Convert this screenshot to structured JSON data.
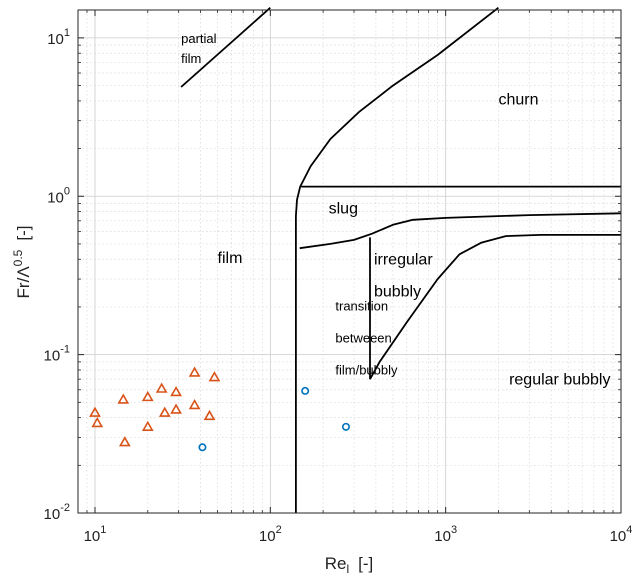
{
  "chart_data": {
    "type": "scatter",
    "xscale": "log",
    "yscale": "log",
    "xlim": [
      8,
      10000
    ],
    "ylim": [
      0.01,
      15
    ],
    "grid": true,
    "minor_grid": true,
    "xlabel": {
      "main": "Re",
      "sub": "l",
      "unit": "[-]"
    },
    "ylabel": {
      "main": "Fr/Λ",
      "sup": "0.5",
      "unit": "[-]"
    },
    "x_ticks": [
      {
        "value": 10,
        "base": "10",
        "exp": "1"
      },
      {
        "value": 100,
        "base": "10",
        "exp": "2"
      },
      {
        "value": 1000,
        "base": "10",
        "exp": "3"
      },
      {
        "value": 10000,
        "base": "10",
        "exp": "4"
      }
    ],
    "y_ticks": [
      {
        "value": 0.01,
        "base": "10",
        "exp": "-2"
      },
      {
        "value": 0.1,
        "base": "10",
        "exp": "-1"
      },
      {
        "value": 1,
        "base": "10",
        "exp": "0"
      },
      {
        "value": 10,
        "base": "10",
        "exp": "1"
      }
    ],
    "boundaries": [
      {
        "name": "partial-film-line",
        "points": [
          [
            31,
            4.9
          ],
          [
            100,
            15.5
          ]
        ]
      },
      {
        "name": "churn-boundary",
        "points": [
          [
            140,
            0.75
          ],
          [
            142,
            0.95
          ],
          [
            148,
            1.15
          ],
          [
            170,
            1.55
          ],
          [
            220,
            2.3
          ],
          [
            320,
            3.4
          ],
          [
            500,
            5.0
          ],
          [
            900,
            7.8
          ],
          [
            2000,
            15.5
          ]
        ]
      },
      {
        "name": "film-left-wall",
        "points": [
          [
            140,
            0.01
          ],
          [
            140,
            0.75
          ]
        ]
      },
      {
        "name": "slug-upper",
        "points": [
          [
            150,
            1.15
          ],
          [
            10000,
            1.15
          ]
        ]
      },
      {
        "name": "slug-lower",
        "points": [
          [
            147,
            0.47
          ],
          [
            220,
            0.5
          ],
          [
            300,
            0.53
          ],
          [
            380,
            0.58
          ],
          [
            500,
            0.66
          ],
          [
            650,
            0.71
          ],
          [
            1000,
            0.73
          ],
          [
            3000,
            0.76
          ],
          [
            10000,
            0.78
          ]
        ]
      },
      {
        "name": "transition-right-wall",
        "points": [
          [
            370,
            0.07
          ],
          [
            370,
            0.55
          ]
        ]
      },
      {
        "name": "regular-bubbly-boundary",
        "points": [
          [
            370,
            0.07
          ],
          [
            420,
            0.09
          ],
          [
            600,
            0.16
          ],
          [
            900,
            0.3
          ],
          [
            1200,
            0.43
          ],
          [
            1600,
            0.51
          ],
          [
            2200,
            0.56
          ],
          [
            3500,
            0.57
          ],
          [
            10000,
            0.57
          ]
        ]
      }
    ],
    "regions": [
      {
        "lines": [
          "partial",
          "film"
        ],
        "x": 31,
        "y": 9.3,
        "size": 13
      },
      {
        "lines": [
          "churn"
        ],
        "x": 2000,
        "y": 3.8,
        "size": 16
      },
      {
        "lines": [
          "slug"
        ],
        "x": 215,
        "y": 0.78,
        "size": 16
      },
      {
        "lines": [
          "film"
        ],
        "x": 50,
        "y": 0.38,
        "size": 16
      },
      {
        "lines": [
          "irregular",
          "bubbly"
        ],
        "x": 390,
        "y": 0.37,
        "size": 16
      },
      {
        "lines": [
          "transition",
          "betweeen",
          "film/bubbly"
        ],
        "x": 235,
        "y": 0.19,
        "size": 13
      },
      {
        "lines": [
          "regular bubbly"
        ],
        "x": 2300,
        "y": 0.065,
        "size": 16
      }
    ],
    "series": [
      {
        "marker": "triangle",
        "color": "#D95319",
        "points": [
          [
            10,
            0.043
          ],
          [
            10.3,
            0.037
          ],
          [
            14.5,
            0.052
          ],
          [
            14.8,
            0.028
          ],
          [
            20,
            0.054
          ],
          [
            20,
            0.035
          ],
          [
            24,
            0.061
          ],
          [
            25,
            0.043
          ],
          [
            29,
            0.058
          ],
          [
            29,
            0.045
          ],
          [
            37,
            0.077
          ],
          [
            37,
            0.048
          ],
          [
            45,
            0.041
          ],
          [
            48,
            0.072
          ]
        ]
      },
      {
        "marker": "circle",
        "color": "#0072BD",
        "points": [
          [
            41,
            0.026
          ],
          [
            158,
            0.059
          ],
          [
            270,
            0.035
          ]
        ]
      }
    ]
  }
}
